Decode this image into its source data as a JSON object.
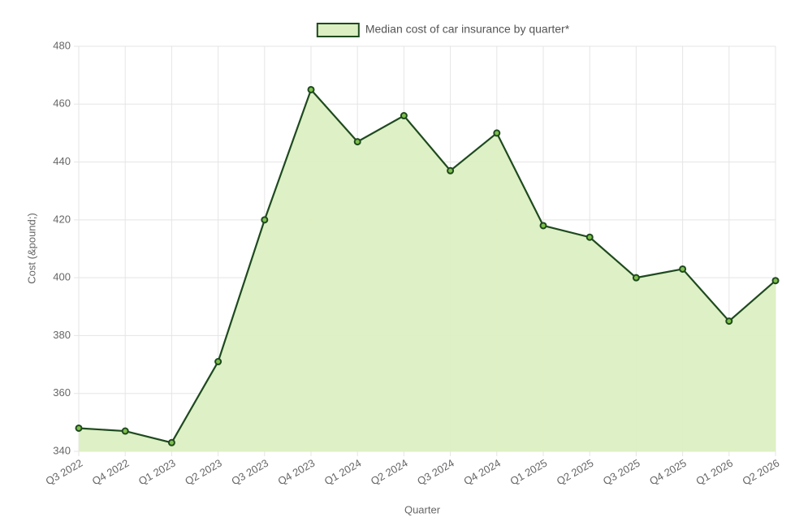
{
  "chart_data": {
    "type": "line",
    "categories": [
      "Q3 2022",
      "Q4 2022",
      "Q1 2023",
      "Q2 2023",
      "Q3 2023",
      "Q4 2023",
      "Q1 2024",
      "Q2 2024",
      "Q3 2024",
      "Q4 2024",
      "Q1 2025",
      "Q2 2025",
      "Q3 2025",
      "Q4 2025",
      "Q1 2026",
      "Q2 2026"
    ],
    "series": [
      {
        "name": "Median cost of car insurance by quarter*",
        "color": "#1e4a1e",
        "fill": "#dcefc2",
        "point_color": "#7fbf4d",
        "values": [
          348,
          347,
          343,
          371,
          420,
          465,
          447,
          456,
          437,
          450,
          418,
          414,
          400,
          403,
          385,
          399
        ]
      }
    ],
    "x_label": "Quarter",
    "y_label": "Cost (&pound;)",
    "ylim": [
      340,
      480
    ],
    "yticks": [
      340,
      360,
      380,
      400,
      420,
      440,
      460,
      480
    ],
    "grid": true,
    "legend": "top"
  }
}
